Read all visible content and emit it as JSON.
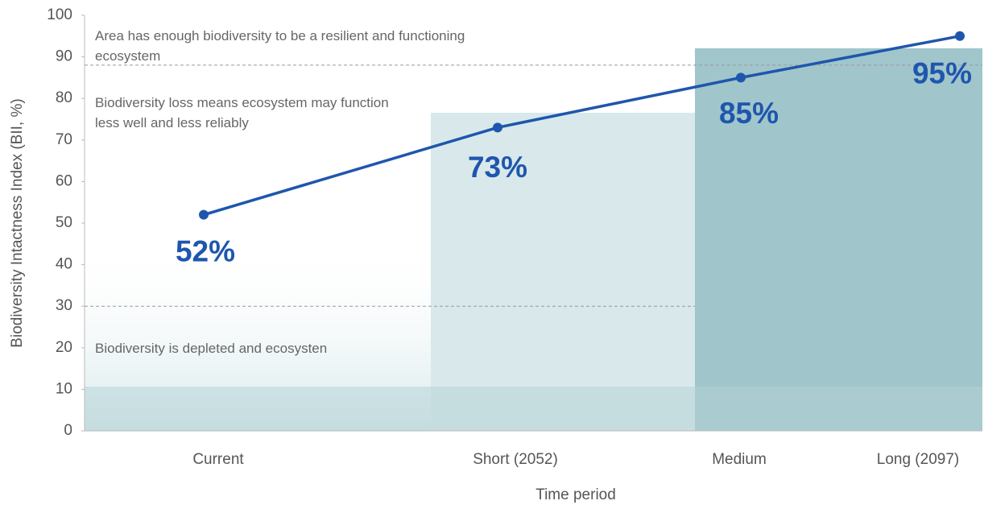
{
  "chart_data": {
    "type": "line",
    "categories": [
      "Current",
      "Short (2052)",
      "Medium",
      "Long (2097)"
    ],
    "series": [
      {
        "color": "#1f56ad",
        "values": [
          52,
          73,
          85,
          95
        ],
        "value_labels": [
          "52%",
          "73%",
          "85%",
          "95%"
        ]
      }
    ],
    "ylim": [
      0,
      100
    ],
    "yticks": [
      0,
      10,
      20,
      30,
      40,
      50,
      60,
      70,
      80,
      90,
      100
    ],
    "ylabel": "Biodiversity Intactness Index (BII, %)",
    "xlabel": "Time period",
    "hlines": [
      88,
      30
    ],
    "annotations": [
      [
        "Area has enough biodiversity to be a resilient and functioning",
        "ecosystem"
      ],
      [
        "Biodiversity loss means ecosystem may function",
        "less well and less reliably"
      ],
      [
        "Biodiversity is depleted and ecosysten"
      ]
    ]
  }
}
